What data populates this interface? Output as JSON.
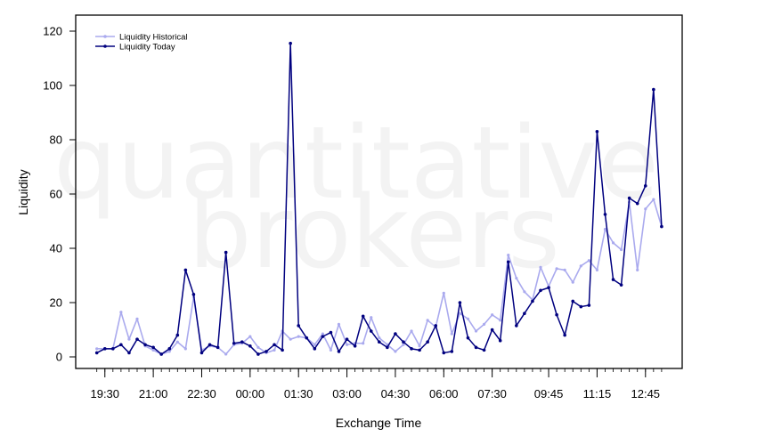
{
  "chart_data": {
    "type": "line",
    "title": "",
    "xlabel": "Exchange Time",
    "ylabel": "Liquidity",
    "watermark": [
      "quantitative",
      "brokers"
    ],
    "ylim": [
      -4,
      126
    ],
    "yticks": [
      0,
      20,
      40,
      60,
      80,
      100,
      120
    ],
    "xtick_labels": [
      "19:30",
      "21:00",
      "22:30",
      "00:00",
      "01:30",
      "03:00",
      "04:30",
      "06:00",
      "07:30",
      "09:45",
      "11:15",
      "12:45"
    ],
    "xtick_major_index": [
      1,
      7,
      13,
      19,
      25,
      31,
      37,
      43,
      49,
      56,
      62,
      68
    ],
    "legend": {
      "position": "top-left"
    },
    "grid": false,
    "colors": {
      "historical": "#aaaaee",
      "today": "#00007f"
    },
    "series": [
      {
        "name": "Liquidity Historical",
        "color": "#aaaaee",
        "values": [
          3,
          3,
          3,
          16.5,
          6.5,
          14,
          4,
          2.5,
          1,
          2,
          5.5,
          3,
          22,
          2.5,
          4,
          3.5,
          1,
          4.5,
          5,
          7.5,
          3.5,
          1.5,
          2.5,
          9.5,
          6.5,
          7.5,
          7,
          4.5,
          8.5,
          2.5,
          12,
          4.5,
          5,
          5,
          14.5,
          7,
          4.5,
          2,
          4.5,
          9.5,
          4,
          13.5,
          11,
          23.5,
          8.5,
          16,
          14,
          9.5,
          12,
          15.5,
          13.5,
          37.5,
          29,
          24,
          21,
          33,
          26,
          32.5,
          32,
          27.5,
          33.5,
          35.5,
          32,
          47,
          42,
          39.5,
          57,
          32,
          54.5,
          58,
          48
        ]
      },
      {
        "name": "Liquidity Today",
        "color": "#00007f",
        "values": [
          1.5,
          3,
          3,
          4.5,
          1.5,
          6.5,
          4.5,
          3.5,
          1,
          3,
          8,
          32,
          23,
          1.5,
          4.5,
          3.5,
          38.5,
          5,
          5.5,
          4,
          1,
          2,
          4.5,
          2.5,
          115.5,
          11.5,
          7,
          3,
          7.5,
          9,
          2,
          6.5,
          4,
          15,
          9.5,
          5.5,
          3.5,
          8.5,
          5.5,
          3,
          2.5,
          5.5,
          11.5,
          1.5,
          2,
          20,
          7,
          3.5,
          2.5,
          10,
          6,
          35,
          11.5,
          16,
          20.5,
          24.5,
          25.5,
          15.5,
          8,
          20.5,
          18.5,
          19,
          83,
          52.5,
          28.5,
          26.5,
          58.5,
          56.5,
          63,
          98.5,
          48
        ]
      }
    ]
  }
}
